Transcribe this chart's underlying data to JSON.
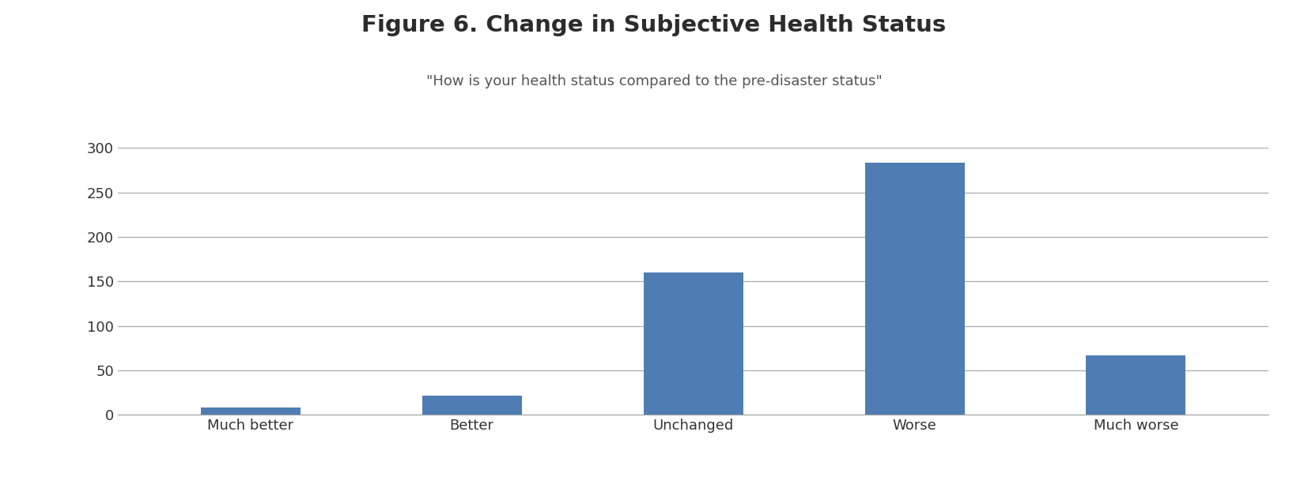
{
  "title": "Figure 6. Change in Subjective Health Status",
  "subtitle": "\"How is your health status compared to the pre-disaster status\"",
  "categories": [
    "Much better",
    "Better",
    "Unchanged",
    "Worse",
    "Much worse"
  ],
  "values": [
    8,
    22,
    160,
    283,
    67
  ],
  "bar_color": "#4f7db3",
  "background_color": "#ffffff",
  "title_fontsize": 21,
  "subtitle_fontsize": 13,
  "tick_fontsize": 13,
  "ylim": [
    0,
    300
  ],
  "yticks": [
    0,
    50,
    100,
    150,
    200,
    250,
    300
  ],
  "grid_color": "#aaaaaa",
  "title_color": "#2c2c2c",
  "subtitle_color": "#555555",
  "tick_label_color": "#333333"
}
